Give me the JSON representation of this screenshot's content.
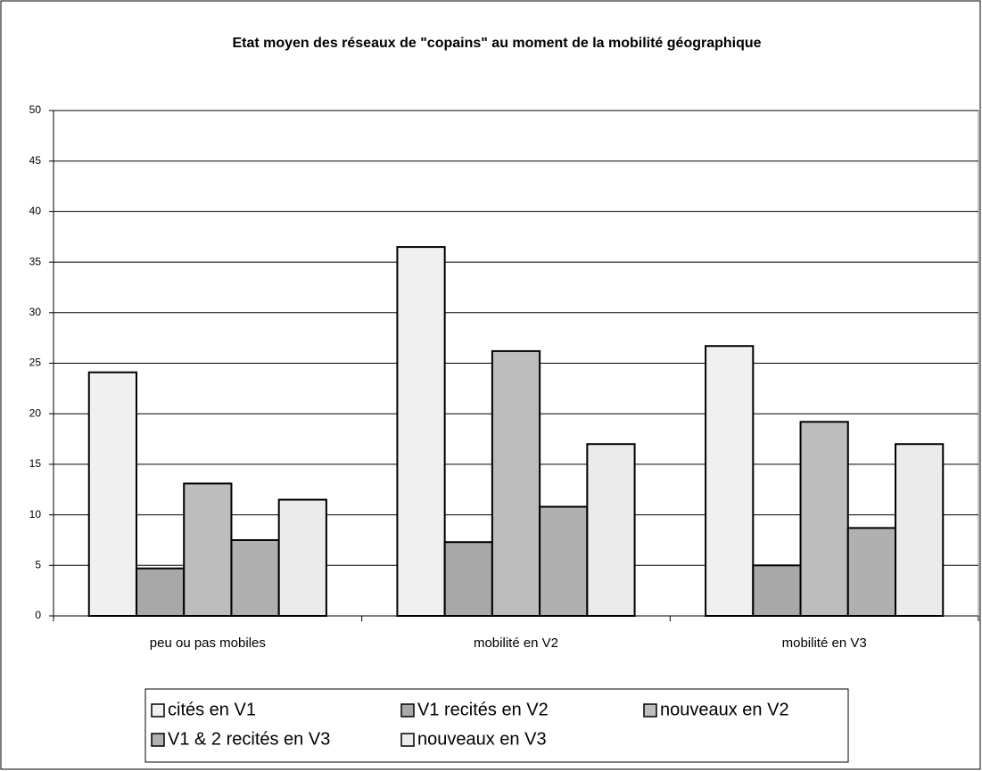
{
  "chart_data": {
    "type": "bar",
    "title": "Etat moyen des réseaux de \"copains\" au moment de la mobilité géographique",
    "categories": [
      "peu ou pas mobiles",
      "mobilité en V2",
      "mobilité en V3"
    ],
    "series": [
      {
        "name": "cités en V1",
        "color": "#f0f0f0",
        "values": [
          24.1,
          36.5,
          26.7
        ]
      },
      {
        "name": "V1 recités en V2",
        "color": "#a8a8a8",
        "values": [
          4.7,
          7.3,
          5.0
        ]
      },
      {
        "name": "nouveaux en V2",
        "color": "#bdbdbd",
        "values": [
          13.1,
          26.2,
          19.2
        ]
      },
      {
        "name": "V1 & 2 recités en V3",
        "color": "#b0b0b0",
        "values": [
          7.5,
          10.8,
          8.7
        ]
      },
      {
        "name": "nouveaux en V3",
        "color": "#ebebeb",
        "values": [
          11.5,
          17.0,
          17.0
        ]
      }
    ],
    "ylim": [
      0,
      50
    ],
    "yticks": [
      0,
      5,
      10,
      15,
      20,
      25,
      30,
      35,
      40,
      45,
      50
    ],
    "grid": true,
    "legend": "bottom"
  }
}
